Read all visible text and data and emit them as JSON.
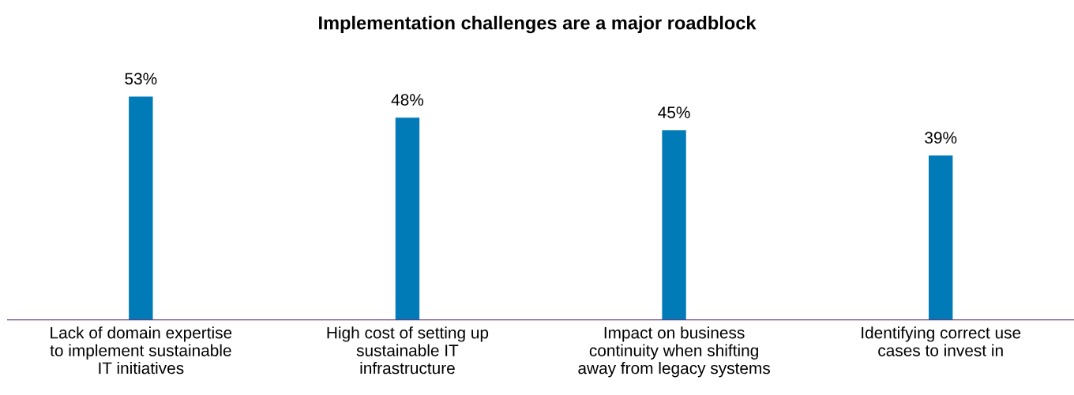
{
  "chart_data": {
    "type": "bar",
    "title": "Implementation challenges are a major roadblock",
    "categories": [
      "Lack of domain expertise\nto implement sustainable\nIT initiatives",
      "High cost of setting up\nsustainable IT\ninfrastructure",
      "Impact on business\ncontinuity when shifting\naway from legacy systems",
      "Identifying correct use\ncases to invest in"
    ],
    "values": [
      53,
      48,
      45,
      39
    ],
    "color": "#007bb8",
    "value_labels": [
      "53%",
      "48%",
      "45%",
      "39%"
    ]
  }
}
